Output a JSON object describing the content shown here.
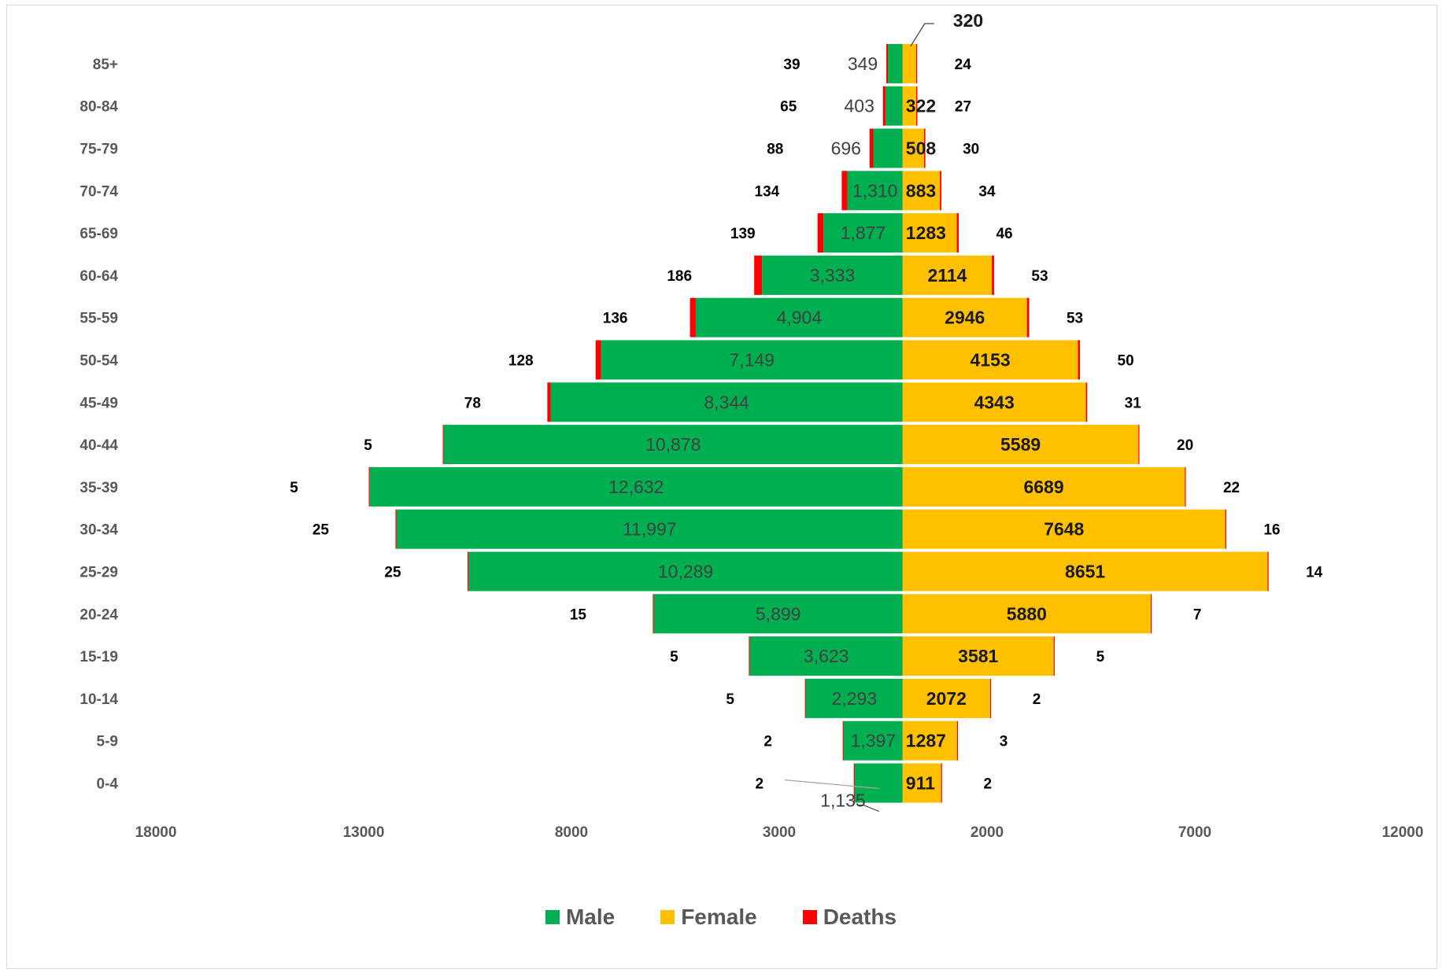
{
  "chart_data": {
    "type": "bar",
    "orientation": "horizontal-population-pyramid",
    "categories": [
      "0-4",
      "5-9",
      "10-14",
      "15-19",
      "20-24",
      "25-29",
      "30-34",
      "35-39",
      "40-44",
      "45-49",
      "50-54",
      "55-59",
      "60-64",
      "65-69",
      "70-74",
      "75-79",
      "80-84",
      "85+"
    ],
    "series": [
      {
        "name": "Male",
        "side": "left",
        "color": "#00b050",
        "values": [
          1135,
          1397,
          2293,
          3623,
          5899,
          10289,
          11997,
          12632,
          10878,
          8344,
          7149,
          4904,
          3333,
          1877,
          1310,
          696,
          403,
          349
        ],
        "labels": [
          "1,135",
          "1,397",
          "2,293",
          "3,623",
          "5,899",
          "10,289",
          "11,997",
          "12,632",
          "10,878",
          "8,344",
          "7,149",
          "4,904",
          "3,333",
          "1,877",
          "1,310",
          "696",
          "403",
          "349"
        ]
      },
      {
        "name": "Female",
        "side": "right",
        "color": "#ffc000",
        "values": [
          911,
          1287,
          2072,
          3581,
          5880,
          8651,
          7648,
          6689,
          5589,
          4343,
          4153,
          2946,
          2114,
          1283,
          883,
          508,
          322,
          320
        ],
        "labels": [
          "911",
          "1287",
          "2072",
          "3581",
          "5880",
          "8651",
          "7648",
          "6689",
          "5589",
          "4343",
          "4153",
          "2946",
          "2114",
          "1283",
          "883",
          "508",
          "322",
          "320"
        ]
      },
      {
        "name": "Deaths",
        "color": "#ff0000",
        "male_values": [
          2,
          2,
          5,
          5,
          15,
          25,
          25,
          5,
          5,
          78,
          128,
          136,
          186,
          139,
          134,
          88,
          65,
          39
        ],
        "female_values": [
          2,
          3,
          2,
          5,
          7,
          14,
          16,
          22,
          20,
          31,
          50,
          53,
          53,
          46,
          34,
          30,
          27,
          24
        ]
      }
    ],
    "x_tick_labels": [
      "18000",
      "13000",
      "8000",
      "3000",
      "2000",
      "7000",
      "12000"
    ],
    "x_range": [
      -18000,
      12000
    ],
    "xlabel": "",
    "ylabel": "",
    "title": "",
    "grid": false,
    "legend_position": "bottom"
  }
}
